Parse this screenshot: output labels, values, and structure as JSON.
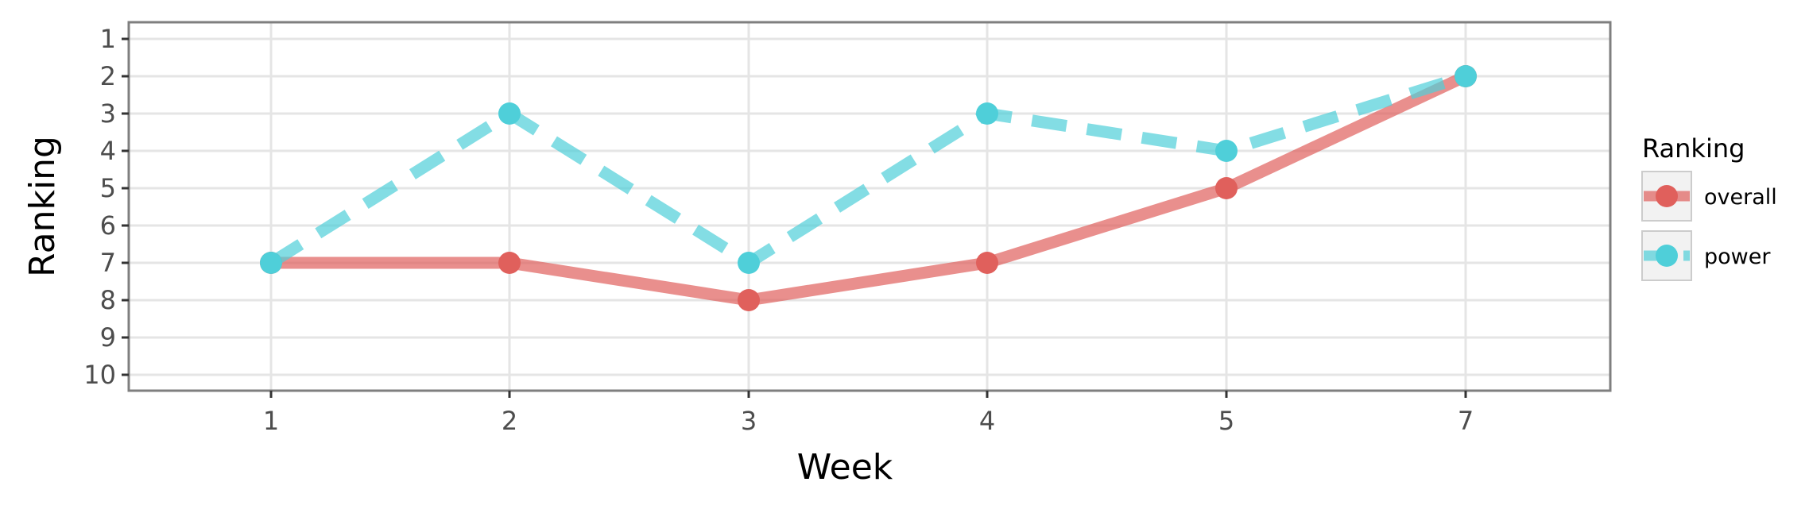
{
  "chart_data": {
    "type": "line",
    "title": "",
    "xlabel": "Week",
    "ylabel": "Ranking",
    "x": [
      "1",
      "2",
      "3",
      "4",
      "5",
      "7"
    ],
    "y_ticks": [
      "1",
      "2",
      "3",
      "4",
      "5",
      "6",
      "7",
      "8",
      "9",
      "10"
    ],
    "ylim": [
      10,
      1
    ],
    "y_reversed": true,
    "grid": true,
    "legend": {
      "title": "Ranking",
      "position": "right"
    },
    "series": [
      {
        "name": "overall",
        "values": [
          7,
          7,
          8,
          7,
          5,
          2
        ],
        "color": "#e0605c",
        "line_style": "solid"
      },
      {
        "name": "power",
        "values": [
          7,
          3,
          7,
          3,
          4,
          2
        ],
        "color": "#4fcfd9",
        "line_style": "dashed"
      }
    ]
  }
}
